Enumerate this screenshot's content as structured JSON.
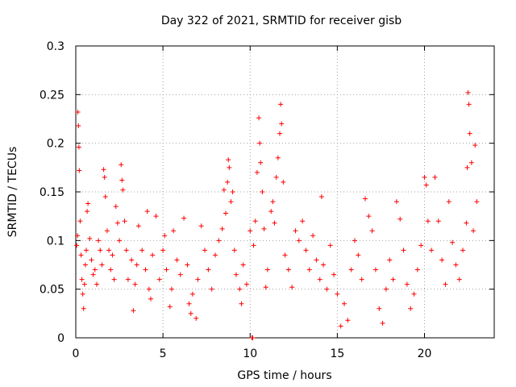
{
  "chart_data": {
    "type": "scatter",
    "title": "Day 322 of 2021, SRMTID for receiver gisb",
    "xlabel": "GPS time / hours",
    "ylabel": "SRMTID / TECUs",
    "xlim": [
      0,
      24
    ],
    "ylim": [
      0,
      0.3
    ],
    "x_ticks": [
      0,
      5,
      10,
      15,
      20
    ],
    "x_tick_labels": [
      "0",
      "5",
      "10",
      "15",
      "20"
    ],
    "y_ticks": [
      0,
      0.05,
      0.1,
      0.15,
      0.2,
      0.25,
      0.3
    ],
    "y_tick_labels": [
      "0",
      "0.05",
      "0.1",
      "0.15",
      "0.2",
      "0.25",
      "0.3"
    ],
    "grid": true,
    "marker": "plus",
    "colors": {
      "points": "#ff0000",
      "grid": "#a0a0a0",
      "axes": "#000000"
    },
    "series": [
      {
        "name": "SRMTID",
        "points": [
          [
            0.05,
            0.095
          ],
          [
            0.1,
            0.105
          ],
          [
            0.12,
            0.232
          ],
          [
            0.15,
            0.218
          ],
          [
            0.18,
            0.196
          ],
          [
            0.2,
            0.172
          ],
          [
            0.25,
            0.12
          ],
          [
            0.3,
            0.085
          ],
          [
            0.35,
            0.06
          ],
          [
            0.4,
            0.045
          ],
          [
            0.45,
            0.03
          ],
          [
            0.5,
            0.055
          ],
          [
            0.55,
            0.075
          ],
          [
            0.6,
            0.09
          ],
          [
            0.65,
            0.13
          ],
          [
            0.7,
            0.138
          ],
          [
            0.8,
            0.102
          ],
          [
            0.9,
            0.08
          ],
          [
            1.0,
            0.065
          ],
          [
            1.1,
            0.07
          ],
          [
            1.2,
            0.055
          ],
          [
            1.3,
            0.1
          ],
          [
            1.4,
            0.09
          ],
          [
            1.5,
            0.075
          ],
          [
            1.6,
            0.173
          ],
          [
            1.65,
            0.165
          ],
          [
            1.7,
            0.145
          ],
          [
            1.8,
            0.11
          ],
          [
            1.9,
            0.09
          ],
          [
            2.0,
            0.07
          ],
          [
            2.1,
            0.085
          ],
          [
            2.2,
            0.06
          ],
          [
            2.3,
            0.135
          ],
          [
            2.4,
            0.118
          ],
          [
            2.5,
            0.1
          ],
          [
            2.6,
            0.178
          ],
          [
            2.65,
            0.162
          ],
          [
            2.7,
            0.152
          ],
          [
            2.8,
            0.12
          ],
          [
            2.9,
            0.09
          ],
          [
            3.0,
            0.06
          ],
          [
            3.2,
            0.08
          ],
          [
            3.3,
            0.028
          ],
          [
            3.4,
            0.055
          ],
          [
            3.5,
            0.075
          ],
          [
            3.6,
            0.115
          ],
          [
            3.8,
            0.09
          ],
          [
            4.0,
            0.07
          ],
          [
            4.1,
            0.13
          ],
          [
            4.2,
            0.05
          ],
          [
            4.3,
            0.04
          ],
          [
            4.4,
            0.085
          ],
          [
            4.6,
            0.125
          ],
          [
            4.8,
            0.06
          ],
          [
            5.0,
            0.09
          ],
          [
            5.1,
            0.105
          ],
          [
            5.2,
            0.07
          ],
          [
            5.4,
            0.032
          ],
          [
            5.5,
            0.05
          ],
          [
            5.6,
            0.11
          ],
          [
            5.8,
            0.08
          ],
          [
            6.0,
            0.065
          ],
          [
            6.2,
            0.123
          ],
          [
            6.4,
            0.075
          ],
          [
            6.5,
            0.035
          ],
          [
            6.6,
            0.025
          ],
          [
            6.7,
            0.045
          ],
          [
            6.9,
            0.02
          ],
          [
            7.0,
            0.06
          ],
          [
            7.2,
            0.115
          ],
          [
            7.4,
            0.09
          ],
          [
            7.6,
            0.07
          ],
          [
            7.8,
            0.05
          ],
          [
            8.0,
            0.085
          ],
          [
            8.2,
            0.1
          ],
          [
            8.4,
            0.112
          ],
          [
            8.5,
            0.152
          ],
          [
            8.6,
            0.128
          ],
          [
            8.7,
            0.16
          ],
          [
            8.75,
            0.183
          ],
          [
            8.8,
            0.175
          ],
          [
            8.9,
            0.14
          ],
          [
            9.0,
            0.15
          ],
          [
            9.1,
            0.09
          ],
          [
            9.2,
            0.065
          ],
          [
            9.4,
            0.05
          ],
          [
            9.5,
            0.035
          ],
          [
            9.6,
            0.075
          ],
          [
            9.8,
            0.055
          ],
          [
            10.0,
            0.11
          ],
          [
            10.1,
            0.0
          ],
          [
            10.15,
            0.0
          ],
          [
            10.2,
            0.095
          ],
          [
            10.3,
            0.12
          ],
          [
            10.4,
            0.17
          ],
          [
            10.5,
            0.226
          ],
          [
            10.55,
            0.2
          ],
          [
            10.6,
            0.18
          ],
          [
            10.7,
            0.15
          ],
          [
            10.8,
            0.112
          ],
          [
            10.9,
            0.052
          ],
          [
            11.0,
            0.07
          ],
          [
            11.2,
            0.13
          ],
          [
            11.3,
            0.14
          ],
          [
            11.4,
            0.118
          ],
          [
            11.5,
            0.165
          ],
          [
            11.6,
            0.185
          ],
          [
            11.7,
            0.21
          ],
          [
            11.75,
            0.24
          ],
          [
            11.8,
            0.22
          ],
          [
            11.9,
            0.16
          ],
          [
            12.0,
            0.085
          ],
          [
            12.2,
            0.07
          ],
          [
            12.4,
            0.052
          ],
          [
            12.6,
            0.11
          ],
          [
            12.8,
            0.1
          ],
          [
            13.0,
            0.12
          ],
          [
            13.2,
            0.09
          ],
          [
            13.4,
            0.07
          ],
          [
            13.6,
            0.105
          ],
          [
            13.8,
            0.08
          ],
          [
            14.0,
            0.06
          ],
          [
            14.1,
            0.145
          ],
          [
            14.2,
            0.075
          ],
          [
            14.4,
            0.05
          ],
          [
            14.6,
            0.095
          ],
          [
            14.8,
            0.065
          ],
          [
            15.0,
            0.045
          ],
          [
            15.2,
            0.012
          ],
          [
            15.4,
            0.035
          ],
          [
            15.6,
            0.018
          ],
          [
            15.8,
            0.07
          ],
          [
            16.0,
            0.1
          ],
          [
            16.2,
            0.085
          ],
          [
            16.4,
            0.06
          ],
          [
            16.6,
            0.143
          ],
          [
            16.8,
            0.125
          ],
          [
            17.0,
            0.11
          ],
          [
            17.2,
            0.07
          ],
          [
            17.4,
            0.03
          ],
          [
            17.6,
            0.015
          ],
          [
            17.8,
            0.05
          ],
          [
            18.0,
            0.08
          ],
          [
            18.2,
            0.06
          ],
          [
            18.4,
            0.14
          ],
          [
            18.6,
            0.122
          ],
          [
            18.8,
            0.09
          ],
          [
            19.0,
            0.055
          ],
          [
            19.2,
            0.03
          ],
          [
            19.4,
            0.045
          ],
          [
            19.6,
            0.07
          ],
          [
            19.8,
            0.095
          ],
          [
            20.0,
            0.165
          ],
          [
            20.1,
            0.157
          ],
          [
            20.2,
            0.12
          ],
          [
            20.4,
            0.09
          ],
          [
            20.6,
            0.165
          ],
          [
            20.8,
            0.12
          ],
          [
            21.0,
            0.08
          ],
          [
            21.2,
            0.055
          ],
          [
            21.4,
            0.14
          ],
          [
            21.6,
            0.098
          ],
          [
            21.8,
            0.075
          ],
          [
            22.0,
            0.06
          ],
          [
            22.2,
            0.09
          ],
          [
            22.4,
            0.118
          ],
          [
            22.45,
            0.175
          ],
          [
            22.5,
            0.252
          ],
          [
            22.55,
            0.24
          ],
          [
            22.6,
            0.21
          ],
          [
            22.7,
            0.18
          ],
          [
            22.8,
            0.11
          ],
          [
            22.9,
            0.198
          ],
          [
            23.0,
            0.14
          ]
        ]
      }
    ]
  }
}
